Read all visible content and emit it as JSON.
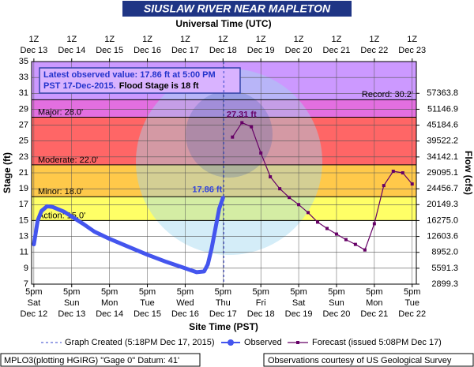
{
  "chart_data": {
    "type": "line",
    "title": "SIUSLAW RIVER NEAR MAPLETON",
    "top_axis_title": "Universal Time (UTC)",
    "x_axis_title": "Site Time (PST)",
    "y_axis_title": "Stage (ft)",
    "y2_axis_title": "Flow (cfs)",
    "xlim": [
      -0.06,
      10.11
    ],
    "ylim": [
      7,
      35
    ],
    "yticks": [
      7,
      9,
      11,
      13,
      15,
      17,
      19,
      21,
      23,
      25,
      27,
      29,
      31,
      33,
      35
    ],
    "y2_stage": [
      7,
      9,
      11,
      13,
      15,
      17,
      19,
      21,
      23,
      25,
      27,
      29,
      31
    ],
    "y2ticks": [
      2899.3,
      5591.3,
      {
        "value": 8952,
        "label": "8952.0"
      },
      12603.6,
      {
        "value": 16275,
        "label": "16275.0"
      },
      20149.3,
      24456.7,
      29095.1,
      34142.1,
      39522.2,
      45184.6,
      51146.9,
      57363.8
    ],
    "xticks": [
      {
        "value": 0,
        "label": [
          "5pm",
          "Sat",
          "Dec 12"
        ]
      },
      {
        "value": 1,
        "label": [
          "5pm",
          "Sun",
          "Dec 13"
        ]
      },
      {
        "value": 2,
        "label": [
          "5pm",
          "Mon",
          "Dec 14"
        ]
      },
      {
        "value": 3,
        "label": [
          "5pm",
          "Tue",
          "Dec 15"
        ]
      },
      {
        "value": 4,
        "label": [
          "5pm",
          "Wed",
          "Dec 16"
        ]
      },
      {
        "value": 5,
        "label": [
          "5pm",
          "Thu",
          "Dec 17"
        ]
      },
      {
        "value": 6,
        "label": [
          "5pm",
          "Fri",
          "Dec 18"
        ]
      },
      {
        "value": 7,
        "label": [
          "5pm",
          "Sat",
          "Dec 19"
        ]
      },
      {
        "value": 8,
        "label": [
          "5pm",
          "Sun",
          "Dec 20"
        ]
      },
      {
        "value": 9,
        "label": [
          "5pm",
          "Mon",
          "Dec 21"
        ]
      },
      {
        "value": 10,
        "label": [
          "5pm",
          "Tue",
          "Dec 22"
        ]
      }
    ],
    "top_xticks": [
      {
        "value": 0,
        "label": [
          "1Z",
          "Dec 13"
        ]
      },
      {
        "value": 1,
        "label": [
          "1Z",
          "Dec 14"
        ]
      },
      {
        "value": 2,
        "label": [
          "1Z",
          "Dec 15"
        ]
      },
      {
        "value": 3,
        "label": [
          "1Z",
          "Dec 16"
        ]
      },
      {
        "value": 4,
        "label": [
          "1Z",
          "Dec 17"
        ]
      },
      {
        "value": 5,
        "label": [
          "1Z",
          "Dec 18"
        ]
      },
      {
        "value": 6,
        "label": [
          "1Z",
          "Dec 19"
        ]
      },
      {
        "value": 7,
        "label": [
          "1Z",
          "Dec 20"
        ]
      },
      {
        "value": 8,
        "label": [
          "1Z",
          "Dec 21"
        ]
      },
      {
        "value": 9,
        "label": [
          "1Z",
          "Dec 22"
        ]
      },
      {
        "value": 10,
        "label": [
          "1Z",
          "Dec 23"
        ]
      }
    ],
    "grid": true,
    "flood_categories": [
      {
        "name": "Action",
        "label": "Action: 15.0'",
        "value": 15,
        "color": "#ffff66"
      },
      {
        "name": "Minor",
        "label": "Minor: 18.0'",
        "value": 18,
        "color": "#ffc94a"
      },
      {
        "name": "Moderate",
        "label": "Moderate: 22.0'",
        "value": 22,
        "color": "#ff6666"
      },
      {
        "name": "Major",
        "label": "Major: 28.0'",
        "value": 28,
        "color": "#e36fe0"
      },
      {
        "name": "Record",
        "label": "Record: 30.2'",
        "value": 30.2,
        "color": "#cc99ff"
      }
    ],
    "info_box": {
      "line1": "Latest observed value: 17.86 ft at 5:00 PM",
      "line2a": "PST 17-Dec-2015.",
      "line2b": "Flood Stage is 18 ft"
    },
    "graph_created": {
      "x": 5.02,
      "label": "Graph Created (5:18PM Dec 17, 2015)"
    },
    "annotations": [
      {
        "text": "17.86 ft",
        "x": 5.0,
        "y": 17.86,
        "color": "#3344dd"
      },
      {
        "text": "27.31 ft",
        "x": 5.47,
        "y": 27.31,
        "color": "#660066"
      }
    ],
    "series": [
      {
        "name": "Observed",
        "color": "#4455ee",
        "x": [
          0,
          0.05,
          0.1,
          0.2,
          0.35,
          0.5,
          0.8,
          1.0,
          1.3,
          1.6,
          2.0,
          2.5,
          3.0,
          3.5,
          4.0,
          4.3,
          4.5,
          4.6,
          4.7,
          4.8,
          4.9,
          5.0
        ],
        "values": [
          12.0,
          13.5,
          15.0,
          16.2,
          16.8,
          16.7,
          16.1,
          15.5,
          14.6,
          13.6,
          12.7,
          11.7,
          10.7,
          9.8,
          9.0,
          8.5,
          8.6,
          9.5,
          11.5,
          14.0,
          16.5,
          17.86
        ]
      },
      {
        "name": "Forecast (issued 5:08PM Dec 17)",
        "color": "#660066",
        "x": [
          5.25,
          5.5,
          5.75,
          6.0,
          6.25,
          6.5,
          6.75,
          7.0,
          7.25,
          7.5,
          7.75,
          8.0,
          8.25,
          8.5,
          8.75,
          9.0,
          9.25,
          9.5,
          9.75,
          10.0
        ],
        "values": [
          25.5,
          27.31,
          26.8,
          23.5,
          20.5,
          19.0,
          17.9,
          17.0,
          16.0,
          14.8,
          14.0,
          13.3,
          12.6,
          12.0,
          11.3,
          14.6,
          19.4,
          21.2,
          21.0,
          19.6
        ]
      }
    ],
    "footer_left": "MPLO3(plotting HGIRG) \"Gage 0\" Datum: 41'",
    "footer_right": "Observations courtesy of US Geological Survey"
  }
}
